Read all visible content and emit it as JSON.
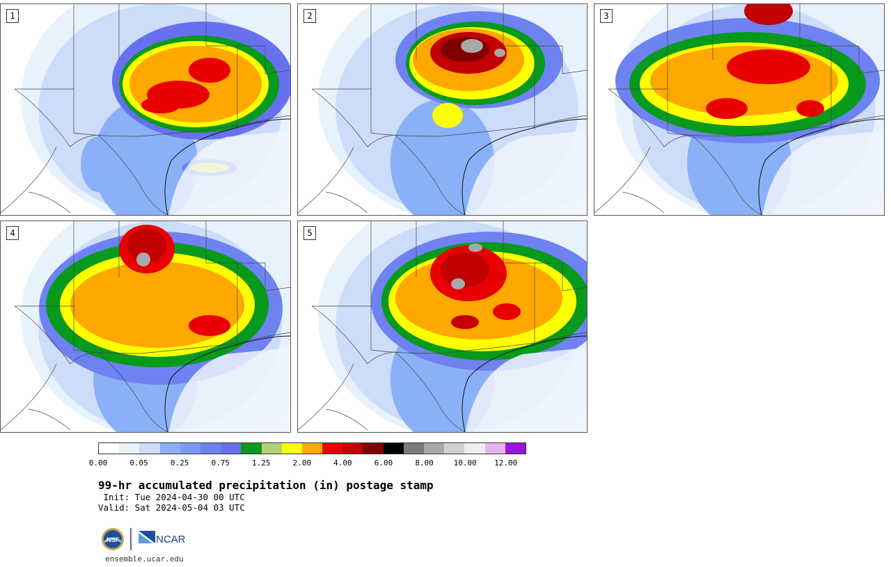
{
  "panels": [
    {
      "label": "1"
    },
    {
      "label": "2"
    },
    {
      "label": "3"
    },
    {
      "label": "4"
    },
    {
      "label": "5"
    }
  ],
  "colorbar": {
    "colors": [
      "#ffffff",
      "#e8f2fd",
      "#cddcf9",
      "#8ab1f7",
      "#7c9bf5",
      "#6e82f1",
      "#6771f0",
      "#079a1d",
      "#b2d078",
      "#ffff02",
      "#ffa800",
      "#e80000",
      "#c20000",
      "#800000",
      "#000000",
      "#7a7a7a",
      "#a8a8a8",
      "#d1d1d1",
      "#efefef",
      "#e5b2f2",
      "#9a13e0"
    ],
    "tick_labels": [
      "0.00",
      "0.05",
      "0.25",
      "0.75",
      "1.25",
      "2.00",
      "4.00",
      "6.00",
      "8.00",
      "10.00",
      "12.00"
    ]
  },
  "title": "99-hr accumulated precipitation (in) postage stamp",
  "init": " Init: Tue 2024-04-30 00 UTC",
  "valid": "Valid: Sat 2024-05-04 03 UTC",
  "logos": {
    "nsf_text": "NSF",
    "ncar_text": "NCAR"
  },
  "url": "ensemble.ucar.edu"
}
